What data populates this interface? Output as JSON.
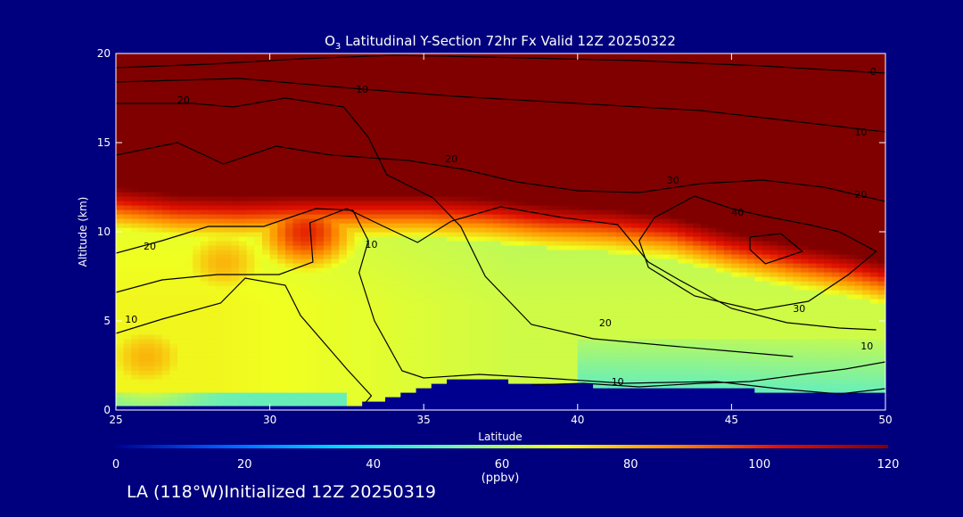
{
  "chart_data": {
    "type": "heatmap",
    "title_prefix": "O",
    "title_subscript": "3",
    "title_rest": " Latitudinal Y-Section 72hr  Fx Valid 12Z 20250322",
    "xlabel": "Latitude",
    "ylabel": "Altitude (km)",
    "xlim": [
      25,
      50
    ],
    "ylim": [
      0,
      20
    ],
    "x_ticks": [
      25,
      30,
      35,
      40,
      45,
      50
    ],
    "y_ticks": [
      0,
      5,
      10,
      15,
      20
    ],
    "colorbar": {
      "range": [
        0,
        120
      ],
      "ticks": [
        0,
        20,
        40,
        60,
        80,
        100,
        120
      ],
      "unit_label": "(ppbv)",
      "colors": [
        "#00008f",
        "#0060ff",
        "#00d8ff",
        "#70f0b0",
        "#f0ff20",
        "#ff9000",
        "#e01000",
        "#800000"
      ]
    },
    "background_color": "#00007f",
    "ozone_fill": {
      "stratosphere_color": "#800000",
      "tropopause_km": [
        [
          25,
          12.3
        ],
        [
          27,
          11.9
        ],
        [
          29,
          11.8
        ],
        [
          31,
          11.9
        ],
        [
          33,
          11.9
        ],
        [
          35,
          11.9
        ],
        [
          37,
          11.7
        ],
        [
          39,
          11.3
        ],
        [
          41,
          11.1
        ],
        [
          43,
          10.7
        ],
        [
          45,
          9.8
        ],
        [
          47,
          9.1
        ],
        [
          49,
          8.5
        ],
        [
          50,
          8.1
        ]
      ],
      "ground_masked_km": [
        [
          25,
          0.3
        ],
        [
          30,
          0.3
        ],
        [
          32,
          0.3
        ],
        [
          33,
          0.35
        ],
        [
          34,
          0.7
        ],
        [
          35,
          1.2
        ],
        [
          36,
          1.7
        ],
        [
          37,
          1.8
        ],
        [
          38,
          1.6
        ],
        [
          40,
          1.4
        ],
        [
          42,
          1.3
        ],
        [
          44,
          1.3
        ],
        [
          46,
          1.1
        ],
        [
          48,
          1.0
        ],
        [
          50,
          0.9
        ]
      ],
      "maxima": [
        {
          "lat": 31.2,
          "alt_km": 10,
          "ppbv": 100
        },
        {
          "lat": 28.5,
          "alt_km": 8.3,
          "ppbv": 80
        },
        {
          "lat": 26,
          "alt_km": 3,
          "ppbv": 80
        }
      ]
    },
    "contour_labels": [
      {
        "text": "0",
        "lat": 49.6,
        "alt_km": 19
      },
      {
        "text": "10",
        "lat": 33,
        "alt_km": 18
      },
      {
        "text": "20",
        "lat": 27.2,
        "alt_km": 17.4
      },
      {
        "text": "10",
        "lat": 49.2,
        "alt_km": 15.6
      },
      {
        "text": "20",
        "lat": 35.9,
        "alt_km": 14.1
      },
      {
        "text": "30",
        "lat": 43.1,
        "alt_km": 12.9
      },
      {
        "text": "20",
        "lat": 49.2,
        "alt_km": 12.1
      },
      {
        "text": "40",
        "lat": 45.2,
        "alt_km": 11.1
      },
      {
        "text": "10",
        "lat": 33.3,
        "alt_km": 9.3
      },
      {
        "text": "20",
        "lat": 26.1,
        "alt_km": 9.2
      },
      {
        "text": "30",
        "lat": 47.2,
        "alt_km": 5.7
      },
      {
        "text": "10",
        "lat": 25.5,
        "alt_km": 5.1
      },
      {
        "text": "20",
        "lat": 40.9,
        "alt_km": 4.9
      },
      {
        "text": "10",
        "lat": 49.4,
        "alt_km": 3.6
      },
      {
        "text": "10",
        "lat": 41.3,
        "alt_km": 1.6
      }
    ]
  },
  "footer": {
    "run_info": "LA (118°W)Initialized 12Z 20250319"
  }
}
